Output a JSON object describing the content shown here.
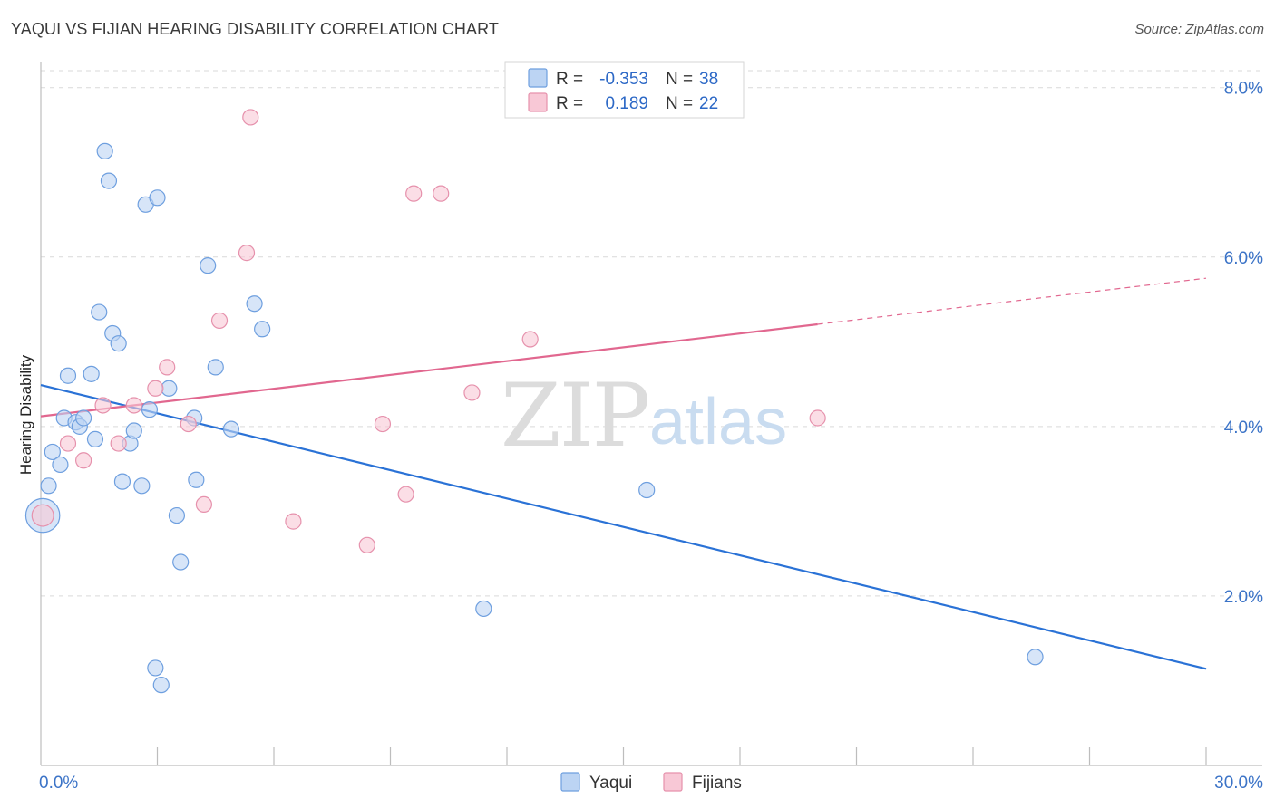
{
  "title": "YAQUI VS FIJIAN HEARING DISABILITY CORRELATION CHART",
  "source": "Source: ZipAtlas.com",
  "watermark": {
    "zip": "ZIP",
    "atlas": "atlas"
  },
  "colors": {
    "yaqui_fill": "#bcd4f3",
    "yaqui_stroke": "#6e9fdf",
    "yaqui_line": "#2a72d6",
    "fijians_fill": "#f8c8d6",
    "fijians_stroke": "#e691ac",
    "fijians_line": "#e1678f",
    "grid": "#d9d9d9",
    "tick_text": "#3b73c7"
  },
  "legend": {
    "rows": [
      {
        "series": "Yaqui",
        "r_label": "R =",
        "r_value": "-0.353",
        "n_label": "N =",
        "n_value": "38"
      },
      {
        "series": "Fijians",
        "r_label": "R =",
        "r_value": "0.189",
        "n_label": "N =",
        "n_value": "22"
      }
    ]
  },
  "chart_data": {
    "type": "scatter",
    "title": "YAQUI VS FIJIAN HEARING DISABILITY CORRELATION CHART",
    "xlabel": "",
    "ylabel": "Hearing Disability",
    "xlim": [
      0,
      30
    ],
    "ylim": [
      0,
      8.2
    ],
    "x_tick_labels": [
      {
        "value": 0,
        "label": "0.0%"
      },
      {
        "value": 30,
        "label": "30.0%"
      }
    ],
    "y_ticks": [
      {
        "value": 2,
        "label": "2.0%"
      },
      {
        "value": 4,
        "label": "4.0%"
      },
      {
        "value": 6,
        "label": "6.0%"
      },
      {
        "value": 8,
        "label": "8.0%"
      }
    ],
    "x_minor_ticks": [
      3,
      6,
      9,
      12,
      15,
      18,
      21,
      24,
      27,
      30
    ],
    "grid": true,
    "series": [
      {
        "name": "Yaqui",
        "points": [
          [
            0.05,
            2.95,
            2.2
          ],
          [
            0.2,
            3.3,
            1
          ],
          [
            0.3,
            3.7,
            1
          ],
          [
            0.5,
            3.55,
            1
          ],
          [
            0.6,
            4.1,
            1
          ],
          [
            0.7,
            4.6,
            1
          ],
          [
            0.9,
            4.05,
            1
          ],
          [
            1.0,
            4.0,
            1
          ],
          [
            1.1,
            4.1,
            1
          ],
          [
            1.3,
            4.62,
            1
          ],
          [
            1.4,
            3.85,
            1
          ],
          [
            1.5,
            5.35,
            1
          ],
          [
            1.65,
            7.25,
            1
          ],
          [
            1.75,
            6.9,
            1
          ],
          [
            1.85,
            5.1,
            1
          ],
          [
            2.0,
            4.98,
            1
          ],
          [
            2.1,
            3.35,
            1
          ],
          [
            2.3,
            3.8,
            1
          ],
          [
            2.4,
            3.95,
            1
          ],
          [
            2.6,
            3.3,
            1
          ],
          [
            2.7,
            6.62,
            1
          ],
          [
            2.8,
            4.2,
            1
          ],
          [
            2.95,
            1.15,
            1
          ],
          [
            3.0,
            6.7,
            1
          ],
          [
            3.1,
            0.95,
            1
          ],
          [
            3.3,
            4.45,
            1
          ],
          [
            3.5,
            2.95,
            1
          ],
          [
            3.6,
            2.4,
            1
          ],
          [
            3.95,
            4.1,
            1
          ],
          [
            4.0,
            3.37,
            1
          ],
          [
            4.3,
            5.9,
            1
          ],
          [
            4.5,
            4.7,
            1
          ],
          [
            4.9,
            3.97,
            1
          ],
          [
            5.5,
            5.45,
            1
          ],
          [
            5.7,
            5.15,
            1
          ],
          [
            15.6,
            3.25,
            1
          ],
          [
            11.4,
            1.85,
            1
          ],
          [
            25.6,
            1.28,
            1
          ]
        ],
        "trendline": {
          "x0": 0,
          "y0": 4.49,
          "x1": 30,
          "y1": 1.14,
          "dashed_from_x": null
        }
      },
      {
        "name": "Fijians",
        "points": [
          [
            0.05,
            2.95,
            1.4
          ],
          [
            0.7,
            3.8,
            1
          ],
          [
            1.1,
            3.6,
            1
          ],
          [
            1.6,
            4.25,
            1
          ],
          [
            2.0,
            3.8,
            1
          ],
          [
            2.4,
            4.25,
            1
          ],
          [
            2.95,
            4.45,
            1
          ],
          [
            3.25,
            4.7,
            1
          ],
          [
            3.8,
            4.03,
            1
          ],
          [
            4.2,
            3.08,
            1
          ],
          [
            4.6,
            5.25,
            1
          ],
          [
            5.3,
            6.05,
            1
          ],
          [
            5.4,
            7.65,
            1
          ],
          [
            6.5,
            2.88,
            1
          ],
          [
            8.4,
            2.6,
            1
          ],
          [
            8.8,
            4.03,
            1
          ],
          [
            9.4,
            3.2,
            1
          ],
          [
            9.6,
            6.75,
            1
          ],
          [
            10.3,
            6.75,
            1
          ],
          [
            11.1,
            4.4,
            1
          ],
          [
            12.6,
            5.03,
            1
          ],
          [
            20.0,
            4.1,
            1
          ]
        ],
        "trendline": {
          "x0": 0,
          "y0": 4.12,
          "x1": 30,
          "y1": 5.75,
          "dashed_from_x": 20.0
        }
      }
    ]
  },
  "bottom_legend": [
    {
      "label": "Yaqui"
    },
    {
      "label": "Fijians"
    }
  ]
}
